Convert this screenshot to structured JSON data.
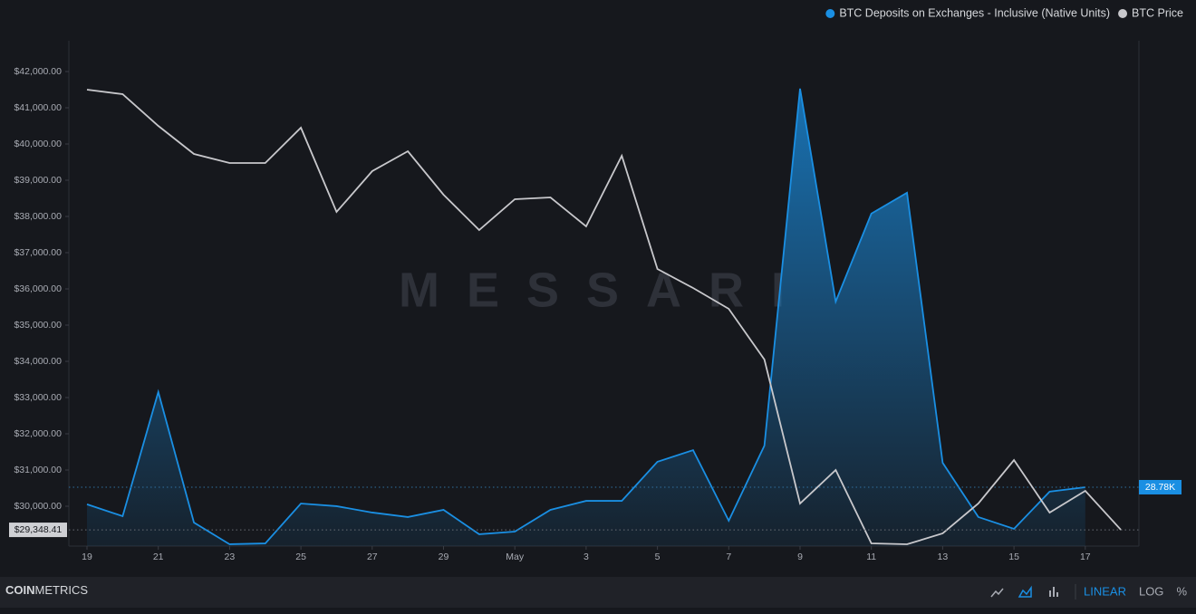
{
  "chart_data": {
    "type": "line",
    "categories": [
      "19",
      null,
      "21",
      null,
      "23",
      null,
      "25",
      null,
      "27",
      null,
      "29",
      null,
      "May",
      null,
      "3",
      null,
      "5",
      null,
      "7",
      null,
      "9",
      null,
      "11",
      null,
      "13",
      null,
      "15",
      null,
      "17",
      null
    ],
    "series": [
      {
        "name": "BTC Deposits on Exchanges - Inclusive (Native Units)",
        "color": "#1a8fe3",
        "axis": "y2",
        "area": true,
        "values": [
          20400,
          14600,
          75300,
          11500,
          900,
          1300,
          20800,
          19500,
          16400,
          14200,
          17700,
          5800,
          7100,
          17700,
          22100,
          22100,
          41200,
          46900,
          12400,
          49100,
          223600,
          119500,
          162500,
          172700,
          40700,
          14200,
          8400,
          26600,
          28780,
          null
        ],
        "value_labels": [
          null,
          null,
          null,
          null,
          null,
          null,
          null,
          null,
          null,
          null,
          null,
          null,
          null,
          null,
          null,
          null,
          null,
          null,
          null,
          null,
          null,
          null,
          null,
          null,
          null,
          null,
          null,
          null,
          "28.78K",
          null
        ]
      },
      {
        "name": "BTC Price",
        "color": "#c8c8cc",
        "axis": "y",
        "values": [
          41500,
          41375,
          40500,
          39725,
          39475,
          39475,
          40450,
          38125,
          39250,
          39800,
          38600,
          37625,
          38475,
          38525,
          37725,
          39675,
          36550,
          36025,
          35450,
          34050,
          30075,
          31000,
          28975,
          28950,
          29250,
          30075,
          31275,
          29825,
          30425,
          29348.41
        ],
        "value_labels": [
          null,
          null,
          null,
          null,
          null,
          null,
          null,
          null,
          null,
          null,
          null,
          null,
          null,
          null,
          null,
          null,
          null,
          null,
          null,
          null,
          null,
          null,
          null,
          null,
          null,
          null,
          null,
          null,
          null,
          "$29,348.41"
        ]
      }
    ],
    "ylim": [
      28900,
      42850
    ],
    "yticks": [
      {
        "value": 30000,
        "label": "$30,000.00"
      },
      {
        "value": 31000,
        "label": "$31,000.00"
      },
      {
        "value": 32000,
        "label": "$32,000.00"
      },
      {
        "value": 33000,
        "label": "$33,000.00"
      },
      {
        "value": 34000,
        "label": "$34,000.00"
      },
      {
        "value": 35000,
        "label": "$35,000.00"
      },
      {
        "value": 36000,
        "label": "$36,000.00"
      },
      {
        "value": 37000,
        "label": "$37,000.00"
      },
      {
        "value": 38000,
        "label": "$38,000.00"
      },
      {
        "value": 39000,
        "label": "$39,000.00"
      },
      {
        "value": 40000,
        "label": "$40,000.00"
      },
      {
        "value": 41000,
        "label": "$41,000.00"
      },
      {
        "value": 42000,
        "label": "$42,000.00"
      }
    ],
    "y2lim": [
      0,
      247000
    ],
    "legend": "top-right",
    "watermark": "MESSARI"
  },
  "footer": {
    "brand_bold": "COIN",
    "brand_light": "METRICS",
    "scales": [
      "LINEAR",
      "LOG",
      "%"
    ],
    "active_scale": 0
  }
}
